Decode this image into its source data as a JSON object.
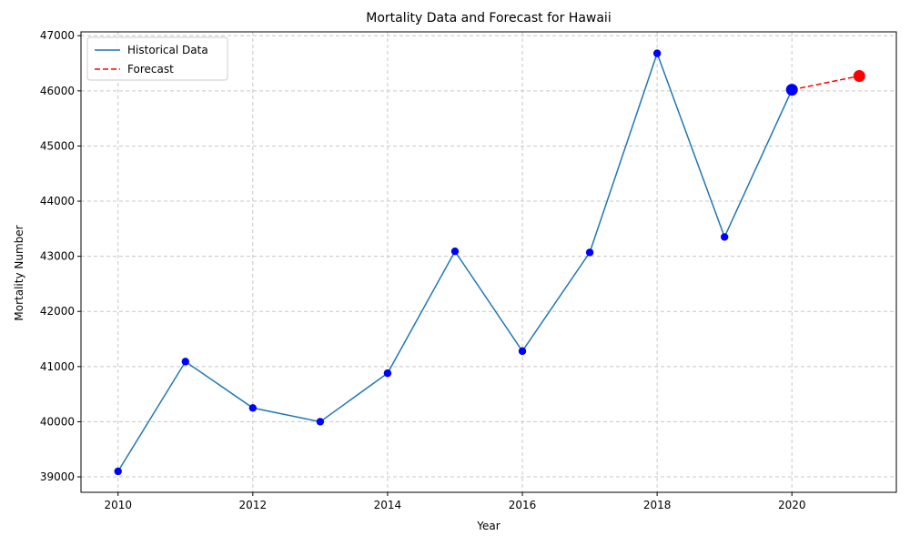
{
  "chart_data": {
    "type": "line",
    "title": "Mortality Data and Forecast for Hawaii",
    "xlabel": "Year",
    "ylabel": "Mortality Number",
    "xlim": [
      2009.45,
      2021.55
    ],
    "ylim": [
      38720,
      47070
    ],
    "x_ticks": [
      2010,
      2012,
      2014,
      2016,
      2018,
      2020
    ],
    "y_ticks": [
      39000,
      40000,
      41000,
      42000,
      43000,
      44000,
      45000,
      46000,
      47000
    ],
    "grid": true,
    "legend_position": "top-left",
    "series": [
      {
        "name": "Historical Data",
        "style": "solid",
        "color": "#1f77b4",
        "marker_color": "#0000ff",
        "x": [
          2010,
          2011,
          2012,
          2013,
          2014,
          2015,
          2016,
          2017,
          2018,
          2019,
          2020
        ],
        "y": [
          39100,
          41090,
          40250,
          40000,
          40880,
          43090,
          41280,
          43070,
          46680,
          43350,
          46020
        ]
      },
      {
        "name": "Forecast",
        "style": "dashed",
        "color": "#ff0000",
        "x": [
          2020,
          2021
        ],
        "y": [
          46020,
          46270
        ]
      }
    ],
    "highlight_points": [
      {
        "x": 2020,
        "y": 46020,
        "color": "#0000ff"
      },
      {
        "x": 2021,
        "y": 46270,
        "color": "#ff0000"
      }
    ]
  }
}
